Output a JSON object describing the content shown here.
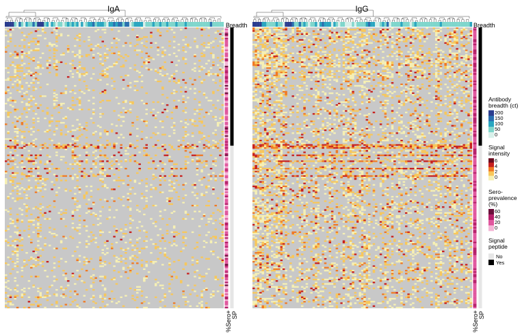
{
  "chart_data": [
    {
      "type": "heatmap",
      "title": "IgA",
      "column_annotation_label": "Breadth",
      "row_annotation_labels": [
        "%Sero+",
        "SP"
      ],
      "n_columns": 95,
      "n_rows": 190,
      "sp_yes_rows": [
        0,
        80
      ]
    },
    {
      "type": "heatmap",
      "title": "IgG",
      "column_annotation_label": "Breadth",
      "row_annotation_labels": [
        "%Sero+",
        "SP"
      ],
      "n_columns": 95,
      "n_rows": 190,
      "sp_yes_rows": [
        0,
        80
      ]
    }
  ],
  "legends": {
    "breadth": {
      "title_lines": [
        "Antibody",
        "breadth (ct)"
      ],
      "ticks": [
        "200",
        "150",
        "100",
        "50",
        "0"
      ],
      "colors": [
        "#2b3d8f",
        "#2a6fb0",
        "#2aa6c0",
        "#7fd6cc",
        "#d8f0ea"
      ]
    },
    "signal": {
      "title_lines": [
        "Signal",
        "intensity"
      ],
      "ticks": [
        "6",
        "4",
        "2",
        "0"
      ],
      "colors": [
        "#6b0a1e",
        "#c8201e",
        "#f07a24",
        "#f8c75a",
        "#f6f0b4"
      ]
    },
    "sero": {
      "title_lines": [
        "Sero-",
        "prevalence",
        "(%)"
      ],
      "ticks": [
        "60",
        "40",
        "20",
        "0"
      ],
      "colors": [
        "#6a0f3a",
        "#b61f6a",
        "#e0579e",
        "#f4b6d6"
      ]
    },
    "sp": {
      "title_lines": [
        "Signal",
        "peptide"
      ],
      "items": [
        {
          "label": "No",
          "color": "#e6e6e6"
        },
        {
          "label": "Yes",
          "color": "#000000"
        }
      ]
    }
  },
  "colors": {
    "na": "#c8c8c8",
    "sp_no": "#e6e6e6",
    "sp_yes": "#000000"
  }
}
